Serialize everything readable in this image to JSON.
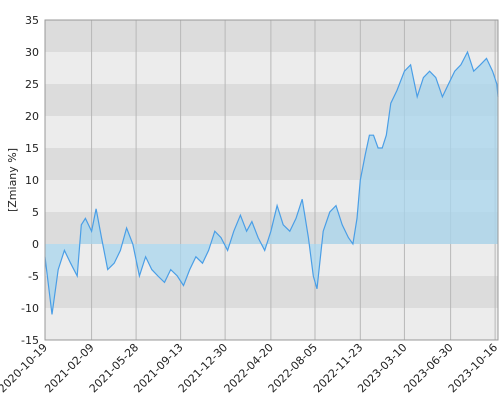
{
  "chart_data": {
    "type": "area-line",
    "y_label": "[Zmiany %]",
    "color": "#4a9ee6",
    "fill_color": "#a8d5ee",
    "x": [
      "2020-10-19",
      "2020-11-05",
      "2020-11-20",
      "2020-12-05",
      "2020-12-20",
      "2021-01-05",
      "2021-01-15",
      "2021-01-25",
      "2021-02-09",
      "2021-02-20",
      "2021-03-05",
      "2021-03-20",
      "2021-04-05",
      "2021-04-20",
      "2021-05-05",
      "2021-05-20",
      "2021-06-05",
      "2021-06-20",
      "2021-07-05",
      "2021-07-20",
      "2021-08-05",
      "2021-08-20",
      "2021-09-05",
      "2021-09-20",
      "2021-10-05",
      "2021-10-20",
      "2021-11-05",
      "2021-11-20",
      "2021-12-05",
      "2021-12-20",
      "2022-01-05",
      "2022-01-20",
      "2022-02-05",
      "2022-02-20",
      "2022-03-05",
      "2022-03-20",
      "2022-04-05",
      "2022-04-20",
      "2022-05-05",
      "2022-05-20",
      "2022-06-05",
      "2022-06-20",
      "2022-07-05",
      "2022-07-20",
      "2022-08-01",
      "2022-08-10",
      "2022-08-25",
      "2022-09-10",
      "2022-09-25",
      "2022-10-10",
      "2022-10-25",
      "2022-11-05",
      "2022-11-15",
      "2022-11-23",
      "2022-12-05",
      "2022-12-15",
      "2022-12-25",
      "2023-01-05",
      "2023-01-15",
      "2023-01-25",
      "2023-02-05",
      "2023-02-20",
      "2023-03-10",
      "2023-03-25",
      "2023-04-10",
      "2023-04-25",
      "2023-05-10",
      "2023-05-25",
      "2023-06-10",
      "2023-06-25",
      "2023-07-10",
      "2023-07-25",
      "2023-08-10",
      "2023-08-25",
      "2023-09-10",
      "2023-09-25",
      "2023-10-10",
      "2023-10-20",
      "2023-10-23"
    ],
    "values": [
      -2,
      -11,
      -4,
      -1,
      -3,
      -5,
      3,
      4,
      2,
      5.5,
      1,
      -4,
      -3,
      -1,
      2.5,
      0,
      -5,
      -2,
      -4,
      -5,
      -6,
      -4,
      -5,
      -6.5,
      -4,
      -2,
      -3,
      -1,
      2,
      1,
      -1,
      2,
      4.5,
      2,
      3.5,
      1,
      -1,
      2,
      6,
      3,
      2,
      4,
      7,
      1,
      -5,
      -7,
      2,
      5,
      6,
      3,
      1,
      0,
      4,
      10,
      14,
      17,
      17,
      15,
      15,
      17,
      22,
      24,
      27,
      28,
      23,
      26,
      27,
      26,
      23,
      25,
      27,
      28,
      30,
      27,
      28,
      29,
      27,
      25,
      23
    ],
    "xlim": [
      "2020-10-19",
      "2023-10-23"
    ],
    "xticks": [
      "2020-10-19",
      "2021-02-09",
      "2021-05-28",
      "2021-09-13",
      "2021-12-30",
      "2022-04-20",
      "2022-08-05",
      "2022-11-23",
      "2023-03-10",
      "2023-06-30",
      "2023-10-16"
    ],
    "ylim": [
      -15,
      35
    ],
    "yticks": [
      -15,
      -10,
      -5,
      0,
      5,
      10,
      15,
      20,
      25,
      30,
      35
    ],
    "grid": true
  }
}
